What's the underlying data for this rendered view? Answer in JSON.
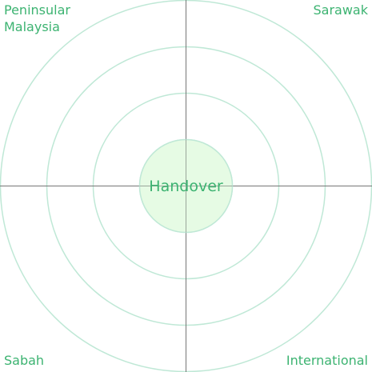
{
  "quadrants": {
    "top_left": "Peninsular Malaysia",
    "top_right": "Sarawak",
    "bottom_left": "Sabah",
    "bottom_right": "International"
  },
  "center": {
    "label": "Handover"
  },
  "ring_count": 4,
  "colors": {
    "ring_stroke": "#bfe8d6",
    "axis_stroke": "#777777",
    "center_fill": "#e6fbe4",
    "center_stroke": "#bfe8d6",
    "label_text": "#3cb371"
  }
}
